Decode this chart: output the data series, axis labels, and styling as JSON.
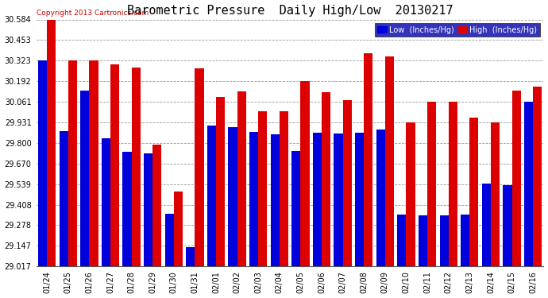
{
  "title": "Barometric Pressure  Daily High/Low  20130217",
  "copyright_text": "Copyright 2013 Cartronics.com",
  "dates": [
    "01/24",
    "01/25",
    "01/26",
    "01/27",
    "01/28",
    "01/29",
    "01/30",
    "01/31",
    "02/01",
    "02/02",
    "02/03",
    "02/04",
    "02/05",
    "02/06",
    "02/07",
    "02/08",
    "02/09",
    "02/10",
    "02/11",
    "02/12",
    "02/13",
    "02/14",
    "02/15",
    "02/16"
  ],
  "low_values": [
    30.323,
    29.877,
    30.131,
    29.83,
    29.746,
    29.733,
    29.353,
    29.14,
    29.91,
    29.9,
    29.87,
    29.855,
    29.75,
    29.867,
    29.862,
    29.867,
    29.887,
    29.348,
    29.34,
    29.34,
    29.346,
    29.54,
    29.53,
    30.064
  ],
  "high_values": [
    30.584,
    30.323,
    30.323,
    30.3,
    30.28,
    29.79,
    29.49,
    30.275,
    30.09,
    30.13,
    30.0,
    30.0,
    30.192,
    30.12,
    30.07,
    30.37,
    30.35,
    29.93,
    30.061,
    30.061,
    29.96,
    29.93,
    30.131,
    30.16
  ],
  "ylim_min": 29.017,
  "ylim_max": 30.584,
  "yticks": [
    29.017,
    29.147,
    29.278,
    29.408,
    29.539,
    29.67,
    29.8,
    29.931,
    30.061,
    30.192,
    30.323,
    30.453,
    30.584
  ],
  "bar_color_low": "#0000dd",
  "bar_color_high": "#dd0000",
  "bg_color": "#ffffff",
  "plot_bg_color": "#ffffff",
  "grid_color": "#999999",
  "title_fontsize": 11,
  "tick_fontsize": 7,
  "bar_width": 0.42,
  "legend_bg": "#0000aa",
  "legend_text_color": "#ffffff",
  "copyright_color": "#cc0000"
}
